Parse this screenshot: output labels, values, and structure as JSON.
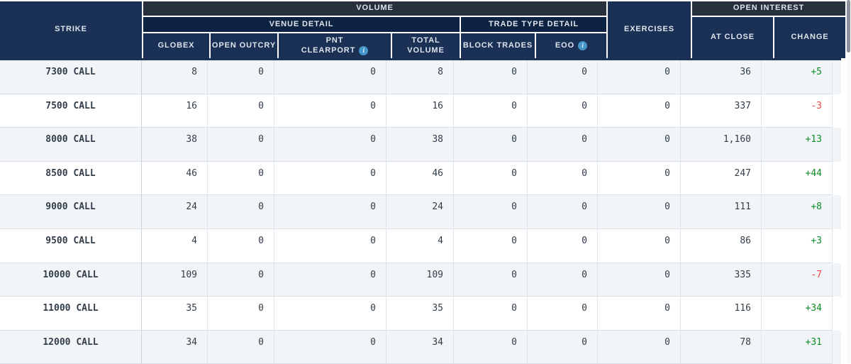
{
  "table": {
    "groups": {
      "volume": "VOLUME",
      "venue_detail": "VENUE DETAIL",
      "trade_type_detail": "TRADE TYPE DETAIL",
      "open_interest": "OPEN INTEREST"
    },
    "columns": {
      "strike": "STRIKE",
      "globex": "GLOBEX",
      "open_outcry": "OPEN OUTCRY",
      "pnt_line1": "PNT",
      "pnt_line2": "CLEARPORT",
      "total_volume": "TOTAL VOLUME",
      "block_trades": "BLOCK TRADES",
      "eoo": "EOO",
      "exercises": "EXERCISES",
      "at_close": "AT CLOSE",
      "change": "CHANGE"
    },
    "info_icon_glyph": "i",
    "rows": [
      {
        "strike": "7300 CALL",
        "globex": "8",
        "open_outcry": "0",
        "pnt_clearport": "0",
        "total_volume": "8",
        "block_trades": "0",
        "eoo": "0",
        "exercises": "0",
        "at_close": "36",
        "change": "+5",
        "change_dir": "up"
      },
      {
        "strike": "7500 CALL",
        "globex": "16",
        "open_outcry": "0",
        "pnt_clearport": "0",
        "total_volume": "16",
        "block_trades": "0",
        "eoo": "0",
        "exercises": "0",
        "at_close": "337",
        "change": "-3",
        "change_dir": "down"
      },
      {
        "strike": "8000 CALL",
        "globex": "38",
        "open_outcry": "0",
        "pnt_clearport": "0",
        "total_volume": "38",
        "block_trades": "0",
        "eoo": "0",
        "exercises": "0",
        "at_close": "1,160",
        "change": "+13",
        "change_dir": "up"
      },
      {
        "strike": "8500 CALL",
        "globex": "46",
        "open_outcry": "0",
        "pnt_clearport": "0",
        "total_volume": "46",
        "block_trades": "0",
        "eoo": "0",
        "exercises": "0",
        "at_close": "247",
        "change": "+44",
        "change_dir": "up"
      },
      {
        "strike": "9000 CALL",
        "globex": "24",
        "open_outcry": "0",
        "pnt_clearport": "0",
        "total_volume": "24",
        "block_trades": "0",
        "eoo": "0",
        "exercises": "0",
        "at_close": "111",
        "change": "+8",
        "change_dir": "up"
      },
      {
        "strike": "9500 CALL",
        "globex": "4",
        "open_outcry": "0",
        "pnt_clearport": "0",
        "total_volume": "4",
        "block_trades": "0",
        "eoo": "0",
        "exercises": "0",
        "at_close": "86",
        "change": "+3",
        "change_dir": "up"
      },
      {
        "strike": "10000 CALL",
        "globex": "109",
        "open_outcry": "0",
        "pnt_clearport": "0",
        "total_volume": "109",
        "block_trades": "0",
        "eoo": "0",
        "exercises": "0",
        "at_close": "335",
        "change": "-7",
        "change_dir": "down"
      },
      {
        "strike": "11000 CALL",
        "globex": "35",
        "open_outcry": "0",
        "pnt_clearport": "0",
        "total_volume": "35",
        "block_trades": "0",
        "eoo": "0",
        "exercises": "0",
        "at_close": "116",
        "change": "+34",
        "change_dir": "up"
      },
      {
        "strike": "12000 CALL",
        "globex": "34",
        "open_outcry": "0",
        "pnt_clearport": "0",
        "total_volume": "34",
        "block_trades": "0",
        "eoo": "0",
        "exercises": "0",
        "at_close": "78",
        "change": "+31",
        "change_dir": "up"
      }
    ]
  },
  "colors": {
    "header_charcoal": "#27303c",
    "header_navy_dark": "#0e2342",
    "header_navy_cell": "#1a3054",
    "positive_change": "#0e8c28",
    "negative_change": "#f2454a",
    "info_icon_blue": "#4695c8",
    "row_stripe": "#f2f5f8"
  }
}
